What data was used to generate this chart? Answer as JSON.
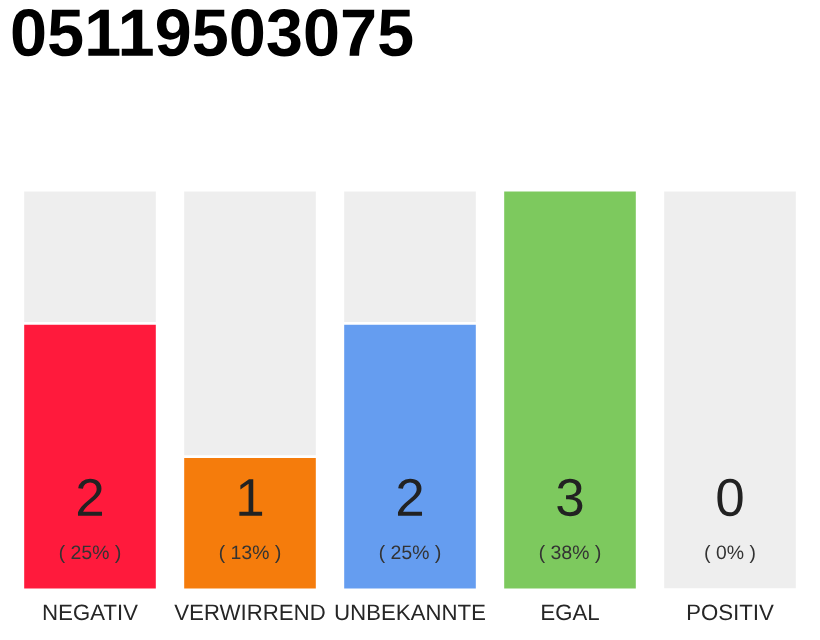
{
  "chart_data": {
    "type": "bar",
    "title": "05119503075",
    "categories": [
      "NEGATIV",
      "VERWIRREND",
      "UNBEKANNTE",
      "EGAL",
      "POSITIV"
    ],
    "values": [
      2,
      1,
      2,
      3,
      0
    ],
    "colors": [
      "#ff1a3c",
      "#f57c0c",
      "#659df0",
      "#7dc95e",
      "#ffffff"
    ],
    "value_labels": [
      "2",
      "1",
      "2",
      "3",
      "0"
    ],
    "annotations": [
      "( 25% )",
      "( 13% )",
      "( 25% )",
      "( 38% )",
      "( 0% )"
    ],
    "tick_labels": "x"
  }
}
